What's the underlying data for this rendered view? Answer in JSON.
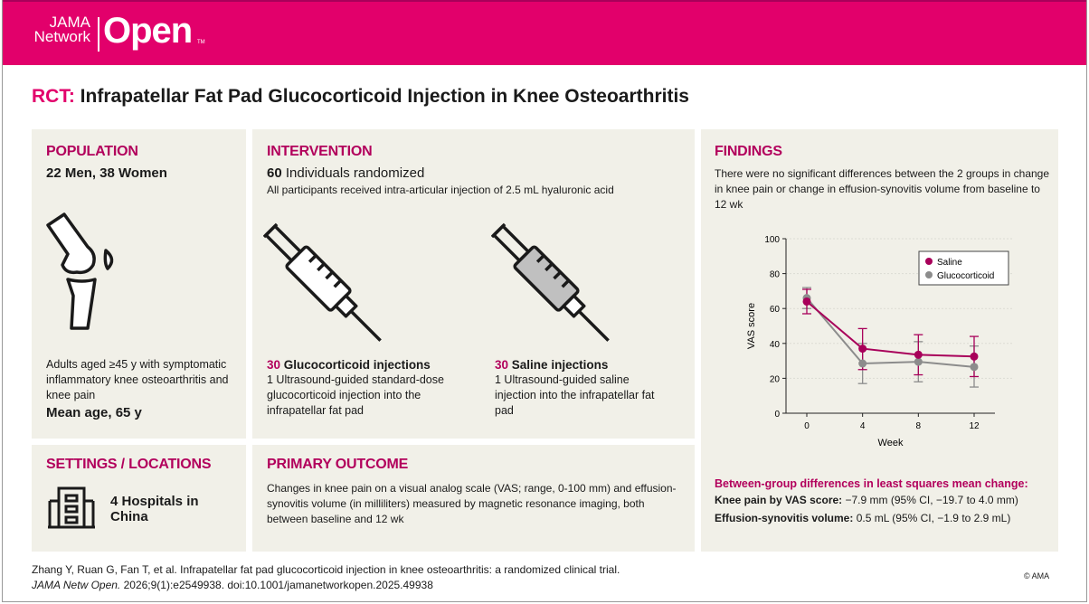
{
  "header": {
    "logo_line1": "JAMA",
    "logo_line2": "Network",
    "logo_main": "Open",
    "logo_tm": "TM"
  },
  "title": {
    "prefix": "RCT:",
    "text": "Infrapatellar Fat Pad Glucocorticoid Injection in Knee Osteoarthritis"
  },
  "population": {
    "heading": "POPULATION",
    "counts": "22 Men, 38 Women",
    "description": "Adults aged ≥45 y with symptomatic inflammatory knee osteoarthritis and knee pain",
    "mean_age": "Mean age, 65 y",
    "icon": "knee-joint-icon"
  },
  "intervention": {
    "heading": "INTERVENTION",
    "randomized_num": "60",
    "randomized_text": "Individuals randomized",
    "all_note": "All participants received intra-articular injection of 2.5 mL hyaluronic acid",
    "arms": [
      {
        "num": "30",
        "label": "Glucocorticoid injections",
        "desc": "1 Ultrasound-guided standard-dose glucocorticoid injection into the infrapatellar fat pad",
        "icon": "syringe-white-icon"
      },
      {
        "num": "30",
        "label": "Saline injections",
        "desc": "1 Ultrasound-guided saline injection into the infrapatellar fat pad",
        "icon": "syringe-gray-icon"
      }
    ]
  },
  "settings": {
    "heading": "SETTINGS / LOCATIONS",
    "text": "4 Hospitals in China",
    "icon": "hospital-building-icon"
  },
  "primary": {
    "heading": "PRIMARY OUTCOME",
    "text": "Changes in knee pain on a visual analog scale (VAS; range, 0-100 mm) and effusion-synovitis volume (in milliliters) measured by magnetic resonance imaging, both between baseline and 12 wk"
  },
  "findings": {
    "heading": "FINDINGS",
    "summary": "There were no significant differences between the 2 groups in change in knee pain or change in effusion-synovitis volume from baseline to 12 wk",
    "between_heading": "Between-group differences in least squares mean change:",
    "result1_label": "Knee pain by VAS score:",
    "result1_value": "−7.9 mm (95% CI, −19.7 to 4.0 mm)",
    "result2_label": "Effusion-synovitis volume:",
    "result2_value": "0.5 mL (95% CI, −1.9 to 2.9 mL)"
  },
  "chart_data": {
    "type": "line",
    "xlabel": "Week",
    "ylabel": "VAS score",
    "x": [
      0,
      4,
      8,
      12
    ],
    "xticks": [
      "0",
      "4",
      "8",
      "12"
    ],
    "yticks": [
      "0",
      "20",
      "40",
      "60",
      "80",
      "100"
    ],
    "ylim": [
      0,
      100
    ],
    "grid": true,
    "legend": "top-right",
    "series": [
      {
        "name": "Saline",
        "color": "#a8005a",
        "values": [
          64,
          37,
          33.5,
          32.5
        ],
        "ci_low": [
          57,
          25,
          22,
          21
        ],
        "ci_high": [
          71,
          48.5,
          45,
          44
        ]
      },
      {
        "name": "Glucocorticoid",
        "color": "#8c8c8c",
        "values": [
          66,
          28.5,
          29.5,
          26.5
        ],
        "ci_low": [
          60,
          17,
          18,
          15
        ],
        "ci_high": [
          72,
          40,
          41,
          38.5
        ]
      }
    ]
  },
  "citation": {
    "line1": "Zhang Y, Ruan G, Fan T, et al. Infrapatellar fat pad glucocorticoid injection in knee osteoarthritis: a randomized clinical trial.",
    "journal": "JAMA Netw Open.",
    "line2": " 2026;9(1):e2549938. doi:10.1001/jamanetworkopen.2025.49938",
    "copyright": "© AMA"
  }
}
